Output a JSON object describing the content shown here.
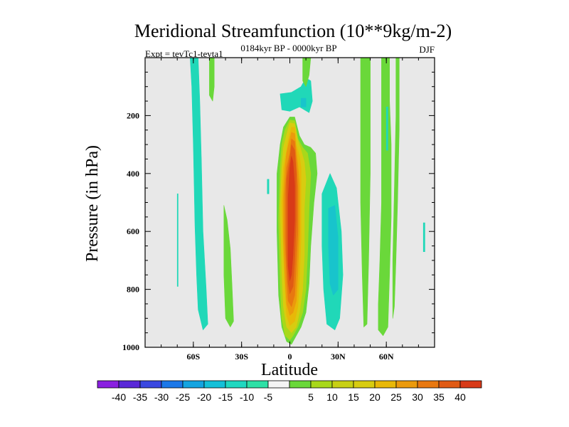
{
  "chart_data": {
    "type": "contour",
    "title": "Meridional Streamfunction (10**9kg/m-2)",
    "left_string": "Expt = tevTc1-tevta1",
    "center_string": "0184kyr BP - 0000kyr BP",
    "right_string": "DJF",
    "xlabel": "Latitude",
    "ylabel": "Pressure (in hPa)",
    "xlim": [
      -90,
      90
    ],
    "ylim": [
      1000,
      0
    ],
    "x_ticks": [
      {
        "value": -60,
        "label": "60S"
      },
      {
        "value": -30,
        "label": "30S"
      },
      {
        "value": 0,
        "label": "0"
      },
      {
        "value": 30,
        "label": "30N"
      },
      {
        "value": 60,
        "label": "60N"
      }
    ],
    "y_ticks": [
      {
        "value": 200,
        "label": "200"
      },
      {
        "value": 400,
        "label": "400"
      },
      {
        "value": 600,
        "label": "600"
      },
      {
        "value": 800,
        "label": "800"
      },
      {
        "value": 1000,
        "label": "1000"
      }
    ],
    "fill_regions": [
      {
        "name": "sh-high-lat-neg",
        "level": -10,
        "color": "#20d8b8",
        "points": [
          [
            -62,
            0
          ],
          [
            -57,
            0
          ],
          [
            -56,
            150
          ],
          [
            -55,
            350
          ],
          [
            -54,
            600
          ],
          [
            -52,
            800
          ],
          [
            -51,
            920
          ],
          [
            -54,
            940
          ],
          [
            -57,
            870
          ],
          [
            -58,
            750
          ],
          [
            -59,
            580
          ],
          [
            -60,
            300
          ],
          [
            -61,
            100
          ]
        ]
      },
      {
        "name": "sh-upper-pos",
        "level": 5,
        "color": "#6ad83a",
        "points": [
          [
            -50,
            0
          ],
          [
            -47,
            0
          ],
          [
            -47,
            100
          ],
          [
            -48,
            150
          ],
          [
            -50,
            130
          ]
        ]
      },
      {
        "name": "sh-mid-lat-pos",
        "level": 5,
        "color": "#6ad83a",
        "points": [
          [
            -41,
            510
          ],
          [
            -39,
            560
          ],
          [
            -37,
            660
          ],
          [
            -36,
            780
          ],
          [
            -35,
            910
          ],
          [
            -37,
            930
          ],
          [
            -40,
            900
          ],
          [
            -41,
            750
          ]
        ]
      },
      {
        "name": "sh-polar-sliver",
        "level": -10,
        "color": "#20d8b8",
        "points": [
          [
            -70,
            470
          ],
          [
            -69.5,
            470
          ],
          [
            -69.5,
            790
          ],
          [
            -70,
            790
          ]
        ]
      },
      {
        "name": "sh-small-neg",
        "level": -10,
        "color": "#20d8b8",
        "points": [
          [
            -14,
            420
          ],
          [
            -13,
            420
          ],
          [
            -13,
            470
          ],
          [
            -14,
            470
          ]
        ]
      },
      {
        "name": "tropical-upper-neg",
        "level": -10,
        "color": "#20d8b8",
        "points": [
          [
            -6,
            125
          ],
          [
            1,
            120
          ],
          [
            7,
            100
          ],
          [
            10,
            70
          ],
          [
            13,
            80
          ],
          [
            14,
            150
          ],
          [
            12,
            190
          ],
          [
            6,
            170
          ],
          [
            0,
            185
          ],
          [
            -5,
            180
          ]
        ]
      },
      {
        "name": "tropical-upper-neg-core",
        "level": -15,
        "color": "#18c4cc",
        "points": [
          [
            7,
            140
          ],
          [
            10,
            140
          ],
          [
            10,
            170
          ],
          [
            7,
            170
          ]
        ]
      },
      {
        "name": "tropical-upper-pos",
        "level": 5,
        "color": "#6ad83a",
        "points": [
          [
            8,
            0
          ],
          [
            13,
            0
          ],
          [
            12,
            60
          ],
          [
            10,
            100
          ],
          [
            8,
            80
          ]
        ]
      },
      {
        "name": "nh-tropical-neg",
        "level": -10,
        "color": "#20d8b8",
        "points": [
          [
            20,
            470
          ],
          [
            25,
            400
          ],
          [
            29,
            450
          ],
          [
            32,
            600
          ],
          [
            33,
            750
          ],
          [
            31,
            900
          ],
          [
            28,
            940
          ],
          [
            23,
            920
          ],
          [
            21,
            800
          ],
          [
            20,
            650
          ]
        ]
      },
      {
        "name": "nh-tropical-neg-core",
        "level": -15,
        "color": "#18c4cc",
        "points": [
          [
            24,
            520
          ],
          [
            28,
            510
          ],
          [
            30,
            620
          ],
          [
            30,
            800
          ],
          [
            27,
            820
          ],
          [
            25,
            780
          ],
          [
            24,
            650
          ]
        ]
      },
      {
        "name": "nh-mid-lat-pos-a",
        "level": 5,
        "color": "#6ad83a",
        "points": [
          [
            44,
            0
          ],
          [
            50,
            0
          ],
          [
            50,
            100
          ],
          [
            50,
            400
          ],
          [
            49,
            700
          ],
          [
            48,
            920
          ],
          [
            46,
            930
          ],
          [
            45,
            750
          ],
          [
            44,
            500
          ],
          [
            44,
            200
          ]
        ]
      },
      {
        "name": "nh-mid-lat-pos-b",
        "level": 5,
        "color": "#6ad83a",
        "points": [
          [
            57,
            0
          ],
          [
            62,
            0
          ],
          [
            62,
            150
          ],
          [
            63,
            300
          ],
          [
            63,
            550
          ],
          [
            62,
            750
          ],
          [
            61,
            930
          ],
          [
            58,
            960
          ],
          [
            55,
            940
          ],
          [
            55,
            850
          ],
          [
            56,
            700
          ],
          [
            57,
            500
          ],
          [
            57,
            250
          ]
        ]
      },
      {
        "name": "nh-high-lat-pos-c",
        "level": 5,
        "color": "#6ad83a",
        "points": [
          [
            66,
            0
          ],
          [
            68,
            0
          ],
          [
            68,
            250
          ],
          [
            67,
            500
          ],
          [
            66,
            700
          ],
          [
            65,
            860
          ],
          [
            64,
            900
          ],
          [
            64,
            700
          ],
          [
            65,
            450
          ],
          [
            66,
            200
          ]
        ]
      },
      {
        "name": "nh-small-neg-a",
        "level": -10,
        "color": "#20d8b8",
        "points": [
          [
            60,
            170
          ],
          [
            61,
            170
          ],
          [
            61,
            320
          ],
          [
            60,
            320
          ]
        ]
      },
      {
        "name": "nh-small-neg-b",
        "level": -10,
        "color": "#20d8b8",
        "points": [
          [
            83,
            570
          ],
          [
            84,
            570
          ],
          [
            84,
            670
          ],
          [
            83,
            670
          ]
        ]
      },
      {
        "name": "eq-cell-5",
        "level": 5,
        "color": "#6ad83a",
        "points": [
          [
            -4,
            240
          ],
          [
            0,
            205
          ],
          [
            3,
            205
          ],
          [
            6,
            270
          ],
          [
            9,
            300
          ],
          [
            13,
            310
          ],
          [
            16,
            330
          ],
          [
            17,
            400
          ],
          [
            15,
            500
          ],
          [
            13,
            650
          ],
          [
            12,
            780
          ],
          [
            10,
            880
          ],
          [
            7,
            930
          ],
          [
            4,
            960
          ],
          [
            1,
            990
          ],
          [
            -2,
            980
          ],
          [
            -5,
            930
          ],
          [
            -7,
            820
          ],
          [
            -8,
            600
          ],
          [
            -8,
            400
          ],
          [
            -6,
            300
          ]
        ]
      },
      {
        "name": "eq-cell-10",
        "level": 10,
        "color": "#a8d81a",
        "points": [
          [
            -3,
            250
          ],
          [
            0,
            215
          ],
          [
            3,
            218
          ],
          [
            5,
            280
          ],
          [
            8,
            310
          ],
          [
            11,
            330
          ],
          [
            13,
            400
          ],
          [
            12,
            520
          ],
          [
            11,
            680
          ],
          [
            10,
            800
          ],
          [
            8,
            880
          ],
          [
            5,
            930
          ],
          [
            2,
            960
          ],
          [
            0,
            975
          ],
          [
            -3,
            960
          ],
          [
            -5,
            900
          ],
          [
            -6,
            780
          ],
          [
            -7,
            560
          ],
          [
            -6,
            380
          ],
          [
            -5,
            300
          ]
        ]
      },
      {
        "name": "eq-cell-15",
        "level": 15,
        "color": "#d8cc10",
        "points": [
          [
            -2,
            265
          ],
          [
            0,
            225
          ],
          [
            3,
            228
          ],
          [
            5,
            285
          ],
          [
            7,
            320
          ],
          [
            9,
            360
          ],
          [
            10,
            420
          ],
          [
            9,
            520
          ],
          [
            9,
            680
          ],
          [
            8,
            800
          ],
          [
            6,
            880
          ],
          [
            4,
            930
          ],
          [
            1,
            950
          ],
          [
            -2,
            930
          ],
          [
            -4,
            860
          ],
          [
            -5,
            740
          ],
          [
            -6,
            520
          ],
          [
            -5,
            380
          ],
          [
            -4,
            310
          ]
        ]
      },
      {
        "name": "eq-cell-20",
        "level": 20,
        "color": "#e8b808",
        "points": [
          [
            -1,
            285
          ],
          [
            1,
            240
          ],
          [
            3,
            240
          ],
          [
            4,
            300
          ],
          [
            6,
            340
          ],
          [
            7,
            380
          ],
          [
            7,
            460
          ],
          [
            7,
            620
          ],
          [
            6,
            760
          ],
          [
            5,
            860
          ],
          [
            3,
            910
          ],
          [
            0,
            925
          ],
          [
            -2,
            890
          ],
          [
            -3,
            800
          ],
          [
            -4,
            680
          ],
          [
            -5,
            500
          ],
          [
            -4,
            380
          ],
          [
            -2,
            320
          ]
        ]
      },
      {
        "name": "eq-cell-25",
        "level": 25,
        "color": "#eb9a0c",
        "points": [
          [
            -1,
            305
          ],
          [
            1,
            258
          ],
          [
            3,
            262
          ],
          [
            4,
            320
          ],
          [
            5,
            370
          ],
          [
            6,
            440
          ],
          [
            6,
            600
          ],
          [
            5,
            740
          ],
          [
            4,
            840
          ],
          [
            2,
            880
          ],
          [
            0,
            890
          ],
          [
            -2,
            850
          ],
          [
            -3,
            760
          ],
          [
            -4,
            620
          ],
          [
            -4,
            480
          ],
          [
            -3,
            380
          ],
          [
            -2,
            330
          ]
        ]
      },
      {
        "name": "eq-cell-30",
        "level": 30,
        "color": "#e87810",
        "points": [
          [
            0,
            330
          ],
          [
            1,
            280
          ],
          [
            3,
            290
          ],
          [
            4,
            360
          ],
          [
            5,
            450
          ],
          [
            5,
            600
          ],
          [
            4,
            720
          ],
          [
            3,
            820
          ],
          [
            1,
            860
          ],
          [
            -1,
            840
          ],
          [
            -2,
            760
          ],
          [
            -3,
            620
          ],
          [
            -3,
            470
          ],
          [
            -2,
            380
          ]
        ]
      },
      {
        "name": "eq-cell-35",
        "level": 35,
        "color": "#e05a14",
        "points": [
          [
            0,
            350
          ],
          [
            1,
            300
          ],
          [
            3,
            320
          ],
          [
            4,
            400
          ],
          [
            4,
            560
          ],
          [
            3,
            700
          ],
          [
            2,
            790
          ],
          [
            0,
            815
          ],
          [
            -1,
            780
          ],
          [
            -2,
            680
          ],
          [
            -2,
            540
          ],
          [
            -2,
            420
          ]
        ]
      },
      {
        "name": "eq-cell-40",
        "level": 40,
        "color": "#d83a18",
        "points": [
          [
            0,
            380
          ],
          [
            1,
            340
          ],
          [
            2,
            360
          ],
          [
            3,
            440
          ],
          [
            3,
            560
          ],
          [
            2,
            680
          ],
          [
            1,
            750
          ],
          [
            0,
            770
          ],
          [
            -1,
            720
          ],
          [
            -1,
            600
          ],
          [
            -1,
            480
          ]
        ]
      }
    ],
    "colorbar": {
      "colors": [
        "#8a20e0",
        "#5a28d8",
        "#3a48e0",
        "#1c78e8",
        "#14a4e0",
        "#14c0d8",
        "#20d8c0",
        "#2ee0a6",
        "#f4f4f4",
        "#6ad83a",
        "#a8d81a",
        "#c8d014",
        "#d8cc10",
        "#e8b808",
        "#eb9a0c",
        "#e87810",
        "#e05a14",
        "#d83a18"
      ],
      "tick_labels": [
        "-40",
        "-35",
        "-30",
        "-25",
        "-20",
        "-15",
        "-10",
        "-5",
        "5",
        "10",
        "15",
        "20",
        "25",
        "30",
        "35",
        "40"
      ]
    },
    "background_color": "#e8e8e8",
    "frame_color": "#000000"
  }
}
